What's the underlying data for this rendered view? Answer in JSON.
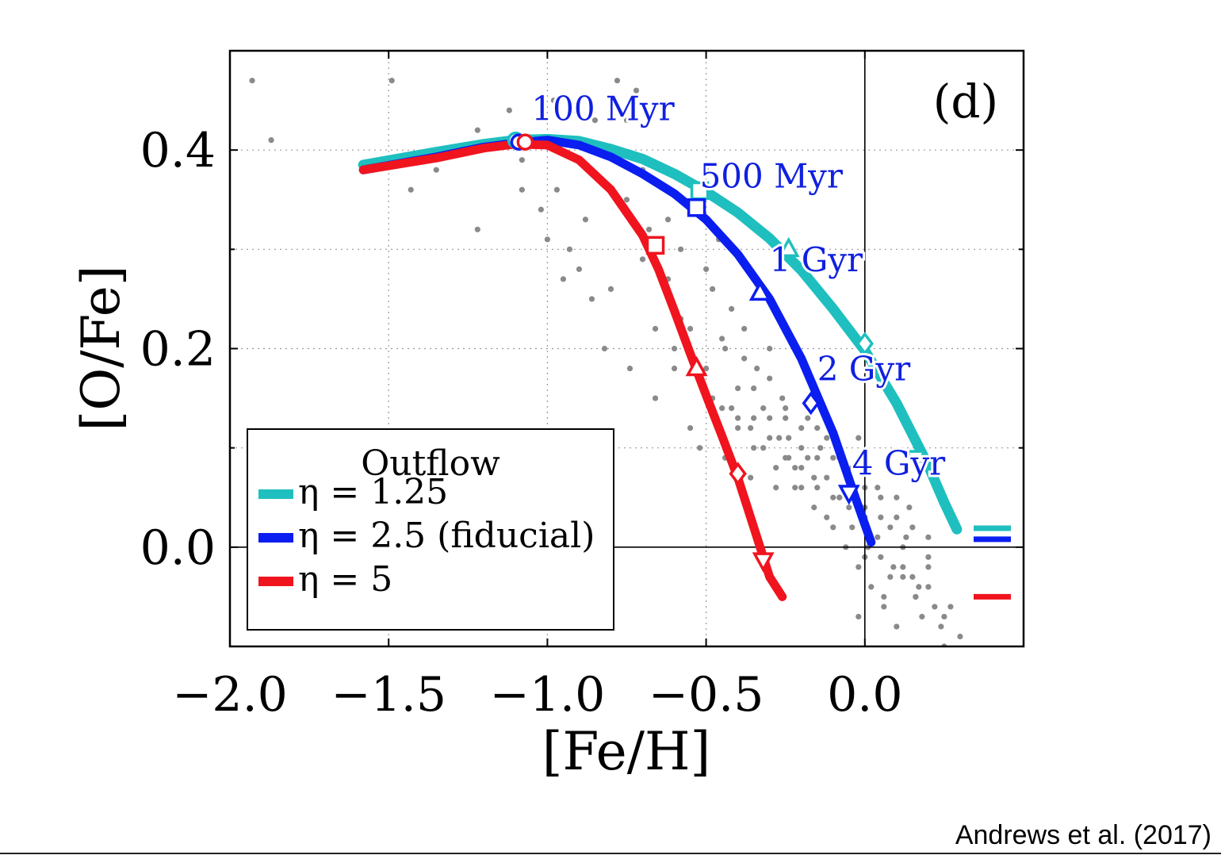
{
  "credit": "Andrews et al. (2017)",
  "chart_data": {
    "type": "line",
    "panel_label": "(d)",
    "xlabel": "[Fe/H]",
    "ylabel": "[O/Fe]",
    "xlim": [
      -2.0,
      0.5
    ],
    "ylim": [
      -0.1,
      0.5
    ],
    "xticks": [
      -2.0,
      -1.5,
      -1.0,
      -0.5,
      0.0
    ],
    "xtick_labels": [
      "−2.0",
      "−1.5",
      "−1.0",
      "−0.5",
      "0.0"
    ],
    "yticks": [
      0.0,
      0.2,
      0.4
    ],
    "ytick_labels": [
      "0.0",
      "0.2",
      "0.4"
    ],
    "grid": true,
    "legend": {
      "title": "Outflow",
      "placement": "lower-left",
      "entries": [
        "η = 1.25",
        "η = 2.5 (fiducial)",
        "η = 5"
      ]
    },
    "colors": {
      "cyan": "#1fbfbf",
      "blue": "#0a1ef0",
      "red": "#f0141e",
      "points": "#8a8a8a"
    },
    "series": [
      {
        "name": "η = 1.25",
        "color": "#1fbfbf",
        "x": [
          -1.58,
          -1.35,
          -1.2,
          -1.1,
          -1.0,
          -0.9,
          -0.8,
          -0.7,
          -0.6,
          -0.5,
          -0.4,
          -0.3,
          -0.2,
          -0.1,
          0.0,
          0.1,
          0.2,
          0.25,
          0.29
        ],
        "y": [
          0.385,
          0.398,
          0.406,
          0.41,
          0.411,
          0.409,
          0.401,
          0.391,
          0.376,
          0.358,
          0.337,
          0.311,
          0.279,
          0.24,
          0.198,
          0.145,
          0.082,
          0.045,
          0.018
        ],
        "equilibrium": 0.019,
        "markers": [
          {
            "x": -1.1,
            "y": 0.41,
            "shape": "circle"
          },
          {
            "x": -0.52,
            "y": 0.359,
            "shape": "square"
          },
          {
            "x": -0.24,
            "y": 0.3,
            "shape": "triangle-up"
          },
          {
            "x": 0.0,
            "y": 0.205,
            "shape": "diamond"
          },
          {
            "x": 0.16,
            "y": 0.09,
            "shape": "triangle-down"
          }
        ]
      },
      {
        "name": "η = 2.5 (fiducial)",
        "color": "#0a1ef0",
        "x": [
          -1.58,
          -1.35,
          -1.2,
          -1.1,
          -1.0,
          -0.9,
          -0.8,
          -0.7,
          -0.6,
          -0.5,
          -0.4,
          -0.3,
          -0.2,
          -0.1,
          -0.03,
          0.02
        ],
        "y": [
          0.38,
          0.393,
          0.403,
          0.407,
          0.41,
          0.405,
          0.393,
          0.376,
          0.356,
          0.33,
          0.295,
          0.25,
          0.19,
          0.115,
          0.05,
          0.005
        ],
        "equilibrium": 0.008,
        "markers": [
          {
            "x": -1.09,
            "y": 0.408,
            "shape": "circle"
          },
          {
            "x": -0.53,
            "y": 0.342,
            "shape": "square"
          },
          {
            "x": -0.33,
            "y": 0.256,
            "shape": "triangle-up"
          },
          {
            "x": -0.17,
            "y": 0.145,
            "shape": "diamond"
          },
          {
            "x": -0.05,
            "y": 0.055,
            "shape": "triangle-down"
          }
        ]
      },
      {
        "name": "η = 5",
        "color": "#f0141e",
        "x": [
          -1.58,
          -1.35,
          -1.2,
          -1.1,
          -1.0,
          -0.9,
          -0.8,
          -0.7,
          -0.65,
          -0.6,
          -0.55,
          -0.5,
          -0.45,
          -0.4,
          -0.35,
          -0.3,
          -0.26
        ],
        "y": [
          0.38,
          0.392,
          0.402,
          0.406,
          0.405,
          0.39,
          0.36,
          0.314,
          0.28,
          0.238,
          0.195,
          0.153,
          0.112,
          0.07,
          0.02,
          -0.03,
          -0.05
        ],
        "equilibrium": -0.05,
        "markers": [
          {
            "x": -1.07,
            "y": 0.408,
            "shape": "circle"
          },
          {
            "x": -0.66,
            "y": 0.304,
            "shape": "square"
          },
          {
            "x": -0.53,
            "y": 0.18,
            "shape": "triangle-up"
          },
          {
            "x": -0.4,
            "y": 0.074,
            "shape": "diamond"
          },
          {
            "x": -0.32,
            "y": -0.013,
            "shape": "triangle-down"
          }
        ]
      }
    ],
    "time_labels": [
      {
        "text": "100 Myr",
        "x": -1.05,
        "y": 0.43
      },
      {
        "text": "500 Myr",
        "x": -0.52,
        "y": 0.362
      },
      {
        "text": "1 Gyr",
        "x": -0.3,
        "y": 0.278
      },
      {
        "text": "2 Gyr",
        "x": -0.15,
        "y": 0.168
      },
      {
        "text": "4 Gyr",
        "x": -0.04,
        "y": 0.073
      }
    ],
    "scatter": {
      "name": "stars",
      "x": [
        -1.93,
        -1.87,
        -1.57,
        -1.49,
        -1.43,
        -1.35,
        -1.22,
        -1.12,
        -1.08,
        -1.02,
        -0.97,
        -0.93,
        -0.9,
        -0.88,
        -0.86,
        -0.8,
        -0.78,
        -0.75,
        -0.72,
        -0.7,
        -0.68,
        -0.66,
        -0.62,
        -0.6,
        -0.58,
        -0.55,
        -0.5,
        -0.48,
        -0.46,
        -0.44,
        -0.42,
        -0.4,
        -0.38,
        -0.36,
        -0.34,
        -0.32,
        -0.3,
        -0.28,
        -0.26,
        -0.24,
        -0.22,
        -0.2,
        -0.18,
        -0.16,
        -0.14,
        -0.12,
        -0.1,
        -0.08,
        -0.06,
        -0.04,
        -0.02,
        0.0,
        0.02,
        0.04,
        0.06,
        0.08,
        0.1,
        0.12,
        0.14,
        0.16,
        0.2,
        0.25,
        0.3,
        -0.98,
        -0.9,
        -0.85,
        -0.75,
        -0.7,
        -0.62,
        -0.58,
        -0.5,
        -0.45,
        -0.42,
        -0.38,
        -0.35,
        -0.3,
        -0.27,
        -0.25,
        -0.22,
        -0.18,
        -0.15,
        -0.12,
        -0.08,
        -0.05,
        -0.02,
        0.01,
        0.05,
        0.09,
        0.13,
        0.17,
        0.22,
        -0.55,
        -0.52,
        -0.48,
        -0.44,
        -0.4,
        -0.36,
        -0.32,
        -0.28,
        -0.24,
        -0.2,
        -0.16,
        -0.12,
        -0.08,
        -0.04,
        0.0,
        0.04,
        0.08,
        0.12,
        0.16,
        0.2,
        0.24,
        -0.6,
        -0.5,
        -0.45,
        -0.4,
        -0.35,
        -0.3,
        -0.25,
        -0.2,
        -0.15,
        -0.1,
        -0.05,
        0.0,
        0.05,
        0.1,
        0.15,
        0.2,
        0.27,
        -0.35,
        -0.3,
        -0.25,
        -0.2,
        -0.15,
        -0.1,
        -0.05,
        0.0,
        0.05,
        0.1,
        0.15,
        0.2,
        -0.02,
        0.06,
        0.12,
        0.18,
        0.25,
        -1.22,
        -1.08,
        -1.0,
        -0.95,
        -0.82,
        -0.74,
        -0.66
      ],
      "y": [
        0.47,
        0.41,
        0.38,
        0.47,
        0.36,
        0.38,
        0.42,
        0.44,
        0.39,
        0.34,
        0.36,
        0.3,
        0.28,
        0.33,
        0.25,
        0.26,
        0.47,
        0.43,
        0.46,
        0.38,
        0.32,
        0.22,
        0.27,
        0.18,
        0.3,
        0.22,
        0.38,
        0.26,
        0.31,
        0.2,
        0.24,
        0.16,
        0.22,
        0.12,
        0.18,
        0.1,
        0.2,
        0.08,
        0.15,
        0.11,
        0.06,
        0.12,
        0.09,
        0.04,
        0.1,
        0.07,
        0.02,
        0.05,
        0.0,
        0.08,
        -0.02,
        0.03,
        -0.04,
        0.06,
        -0.06,
        0.02,
        -0.08,
        -0.03,
        0.04,
        -0.05,
        0.01,
        -0.07,
        -0.09,
        0.45,
        0.41,
        0.43,
        0.35,
        0.29,
        0.33,
        0.23,
        0.28,
        0.21,
        0.14,
        0.19,
        0.13,
        0.17,
        0.11,
        0.14,
        0.08,
        0.13,
        0.06,
        0.11,
        0.09,
        0.04,
        0.11,
        0.0,
        0.05,
        -0.02,
        0.01,
        -0.04,
        -0.06,
        0.12,
        0.1,
        0.15,
        0.09,
        0.13,
        0.07,
        0.14,
        0.06,
        0.09,
        0.1,
        0.07,
        0.03,
        0.05,
        0.02,
        -0.01,
        0.01,
        -0.03,
        0.0,
        -0.05,
        -0.02,
        -0.08,
        0.2,
        0.18,
        0.14,
        0.12,
        0.16,
        0.11,
        0.13,
        0.08,
        0.12,
        0.09,
        0.07,
        0.06,
        0.03,
        0.05,
        0.02,
        -0.01,
        -0.06,
        0.1,
        0.13,
        0.09,
        0.06,
        0.09,
        0.05,
        0.07,
        0.04,
        -0.01,
        0.03,
        -0.03,
        -0.04,
        -0.07,
        -0.05,
        -0.02,
        -0.07,
        -0.1,
        0.32,
        0.36,
        0.31,
        0.27,
        0.2,
        0.18,
        0.15
      ]
    }
  }
}
